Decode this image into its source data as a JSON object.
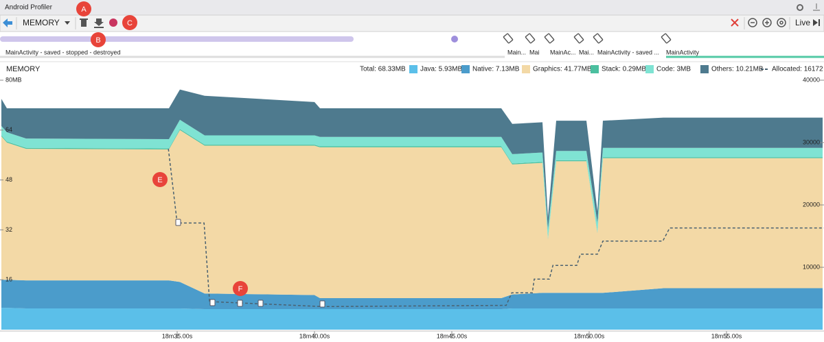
{
  "window": {
    "title": "Android Profiler"
  },
  "toolbar": {
    "profiler": "MEMORY",
    "live": "Live"
  },
  "callouts": [
    "A",
    "B",
    "C",
    "E",
    "F"
  ],
  "activities": [
    "MainActivity - saved - stopped - destroyed",
    "Main...",
    "Mai",
    "MainAc...",
    "Mai...",
    "MainActivity - saved ...",
    "MainActivity"
  ],
  "chart_data": {
    "type": "area",
    "stacked": true,
    "title": "MEMORY",
    "total": "Total: 68.33MB",
    "x": [
      1108.6,
      1108.8,
      1109.5,
      1114.7,
      1115.1,
      1116.0,
      1120.0,
      1120.2,
      1126.8,
      1127.2,
      1128.3,
      1128.5,
      1128.8,
      1129.9,
      1130.3,
      1130.5,
      1132.7,
      1138.5
    ],
    "xlim": [
      1108.55,
      1138.55
    ],
    "xticks": [
      {
        "value": 1115,
        "label": "18m35.00s"
      },
      {
        "value": 1120,
        "label": "18m40.00s"
      },
      {
        "value": 1125,
        "label": "18m45.00s"
      },
      {
        "value": 1130,
        "label": "18m50.00s"
      },
      {
        "value": 1135,
        "label": "18m55.00s"
      }
    ],
    "ylim": [
      0,
      80
    ],
    "yticks": [
      {
        "value": 80,
        "label": "80MB"
      },
      64,
      48,
      32,
      16
    ],
    "y2lim": [
      0,
      40000
    ],
    "y2ticks": [
      40000,
      30000,
      20000,
      10000
    ],
    "series": [
      {
        "name": "Java: 5.93MB",
        "color": "#5bbfe9",
        "values": [
          7,
          7,
          6.8,
          6.8,
          6.8,
          6.6,
          6.6,
          6.6,
          6.6,
          6.8,
          6.8,
          6.8,
          6.8,
          6.8,
          6.8,
          6.8,
          6.8,
          6.8
        ]
      },
      {
        "name": "Native:  7.13MB",
        "color": "#4b9ccb",
        "values": [
          9,
          9,
          9,
          9,
          8.5,
          5,
          4.5,
          3.5,
          3.5,
          4.5,
          5,
          5,
          5,
          5,
          5,
          5,
          6.5,
          6.5
        ]
      },
      {
        "name": "Graphics: 41.77MB",
        "color": "#f3d9a6",
        "values": [
          46,
          44,
          42.2,
          42,
          48.7,
          47.4,
          47.9,
          48.4,
          48.4,
          41.7,
          41.7,
          17.2,
          42.2,
          42.2,
          19.2,
          43.2,
          41.7,
          41.7
        ]
      },
      {
        "name": "Stack: 0.29MB",
        "color": "#4bbf9f",
        "values": [
          0.3,
          0.3,
          0.3,
          0.3,
          0.3,
          0.3,
          0.3,
          0.3,
          0.3,
          0.3,
          0.3,
          0.3,
          0.3,
          0.3,
          0.3,
          0.3,
          0.3,
          0.3
        ]
      },
      {
        "name": "Code:    3MB",
        "color": "#7fe3d3",
        "values": [
          3,
          3,
          3,
          3,
          3,
          3,
          3,
          3,
          3,
          3,
          3,
          3,
          3,
          3,
          3,
          3,
          3,
          3
        ]
      },
      {
        "name": "Others: 10.21MB",
        "color": "#4e7a8e",
        "values": [
          8.7,
          7.7,
          9.7,
          9.9,
          9.7,
          12.7,
          10.7,
          9.2,
          9.2,
          9.7,
          9.7,
          3.7,
          9.7,
          9.7,
          3.7,
          8.7,
          9.7,
          9.7
        ]
      },
      {
        "name": "Allocated: 16172",
        "color": "#4a6170",
        "axis": "y2",
        "dashed": true,
        "x": [
          1114.68,
          1115.0,
          1115.98,
          1116.18,
          1120.3,
          1126.98,
          1127.18,
          1127.93,
          1128.0,
          1128.55,
          1128.68,
          1129.55,
          1129.68,
          1130.3,
          1130.5,
          1132.68,
          1132.93,
          1138.55
        ],
        "values": [
          29000,
          17100,
          17100,
          4500,
          3700,
          3900,
          5900,
          5900,
          8100,
          8100,
          10300,
          10300,
          12100,
          12100,
          14200,
          14200,
          16300,
          16300
        ]
      }
    ]
  }
}
